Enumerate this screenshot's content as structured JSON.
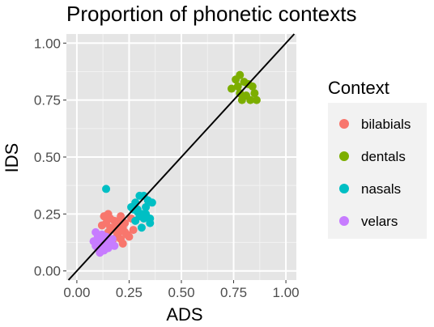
{
  "chart_data": {
    "type": "scatter",
    "title": "Proportion of phonetic contexts",
    "xlabel": "ADS",
    "ylabel": "IDS",
    "xlim": [
      -0.05,
      1.05
    ],
    "ylim": [
      -0.04,
      1.04
    ],
    "x_ticks": [
      "0.00",
      "0.25",
      "0.50",
      "0.75",
      "1.00"
    ],
    "y_ticks": [
      "0.00",
      "0.25",
      "0.50",
      "0.75",
      "1.00"
    ],
    "x_tick_values": [
      0,
      0.25,
      0.5,
      0.75,
      1.0
    ],
    "y_tick_values": [
      0,
      0.25,
      0.5,
      0.75,
      1.0
    ],
    "grid": true,
    "background": "#e5e5e5",
    "reference_line": {
      "slope": 1,
      "intercept": 0,
      "color": "#000000"
    },
    "legend": {
      "title": "Context",
      "position": "right"
    },
    "series": [
      {
        "name": "bilabials",
        "color": "#f8766d",
        "points": [
          [
            0.13,
            0.24
          ],
          [
            0.15,
            0.25
          ],
          [
            0.12,
            0.2
          ],
          [
            0.14,
            0.21
          ],
          [
            0.16,
            0.19
          ],
          [
            0.18,
            0.18
          ],
          [
            0.2,
            0.22
          ],
          [
            0.21,
            0.24
          ],
          [
            0.22,
            0.19
          ],
          [
            0.23,
            0.17
          ],
          [
            0.24,
            0.16
          ],
          [
            0.21,
            0.14
          ],
          [
            0.19,
            0.15
          ],
          [
            0.17,
            0.13
          ],
          [
            0.25,
            0.15
          ],
          [
            0.27,
            0.18
          ],
          [
            0.15,
            0.17
          ],
          [
            0.18,
            0.22
          ],
          [
            0.23,
            0.21
          ],
          [
            0.26,
            0.23
          ],
          [
            0.19,
            0.2
          ],
          [
            0.22,
            0.12
          ],
          [
            0.16,
            0.23
          ],
          [
            0.2,
            0.17
          ]
        ]
      },
      {
        "name": "dentals",
        "color": "#7cae00",
        "points": [
          [
            0.74,
            0.8
          ],
          [
            0.76,
            0.84
          ],
          [
            0.78,
            0.86
          ],
          [
            0.8,
            0.83
          ],
          [
            0.82,
            0.82
          ],
          [
            0.84,
            0.81
          ],
          [
            0.85,
            0.78
          ],
          [
            0.78,
            0.78
          ],
          [
            0.81,
            0.77
          ],
          [
            0.83,
            0.75
          ],
          [
            0.86,
            0.75
          ],
          [
            0.79,
            0.75
          ],
          [
            0.77,
            0.81
          ]
        ]
      },
      {
        "name": "nasals",
        "color": "#00bfc4",
        "points": [
          [
            0.14,
            0.36
          ],
          [
            0.26,
            0.28
          ],
          [
            0.28,
            0.3
          ],
          [
            0.3,
            0.33
          ],
          [
            0.32,
            0.33
          ],
          [
            0.34,
            0.31
          ],
          [
            0.36,
            0.3
          ],
          [
            0.29,
            0.27
          ],
          [
            0.31,
            0.25
          ],
          [
            0.33,
            0.25
          ],
          [
            0.35,
            0.23
          ],
          [
            0.35,
            0.21
          ],
          [
            0.32,
            0.23
          ],
          [
            0.3,
            0.24
          ],
          [
            0.28,
            0.22
          ],
          [
            0.31,
            0.19
          ],
          [
            0.29,
            0.26
          ],
          [
            0.27,
            0.27
          ],
          [
            0.33,
            0.28
          ]
        ]
      },
      {
        "name": "velars",
        "color": "#c77cff",
        "points": [
          [
            0.09,
            0.17
          ],
          [
            0.1,
            0.15
          ],
          [
            0.12,
            0.16
          ],
          [
            0.13,
            0.13
          ],
          [
            0.14,
            0.15
          ],
          [
            0.15,
            0.14
          ],
          [
            0.11,
            0.12
          ],
          [
            0.09,
            0.11
          ],
          [
            0.1,
            0.1
          ],
          [
            0.12,
            0.1
          ],
          [
            0.13,
            0.09
          ],
          [
            0.14,
            0.11
          ],
          [
            0.16,
            0.12
          ],
          [
            0.17,
            0.14
          ],
          [
            0.15,
            0.1
          ],
          [
            0.11,
            0.08
          ],
          [
            0.08,
            0.13
          ],
          [
            0.12,
            0.14
          ],
          [
            0.18,
            0.11
          ],
          [
            0.1,
            0.13
          ],
          [
            0.13,
            0.11
          ]
        ]
      }
    ]
  }
}
